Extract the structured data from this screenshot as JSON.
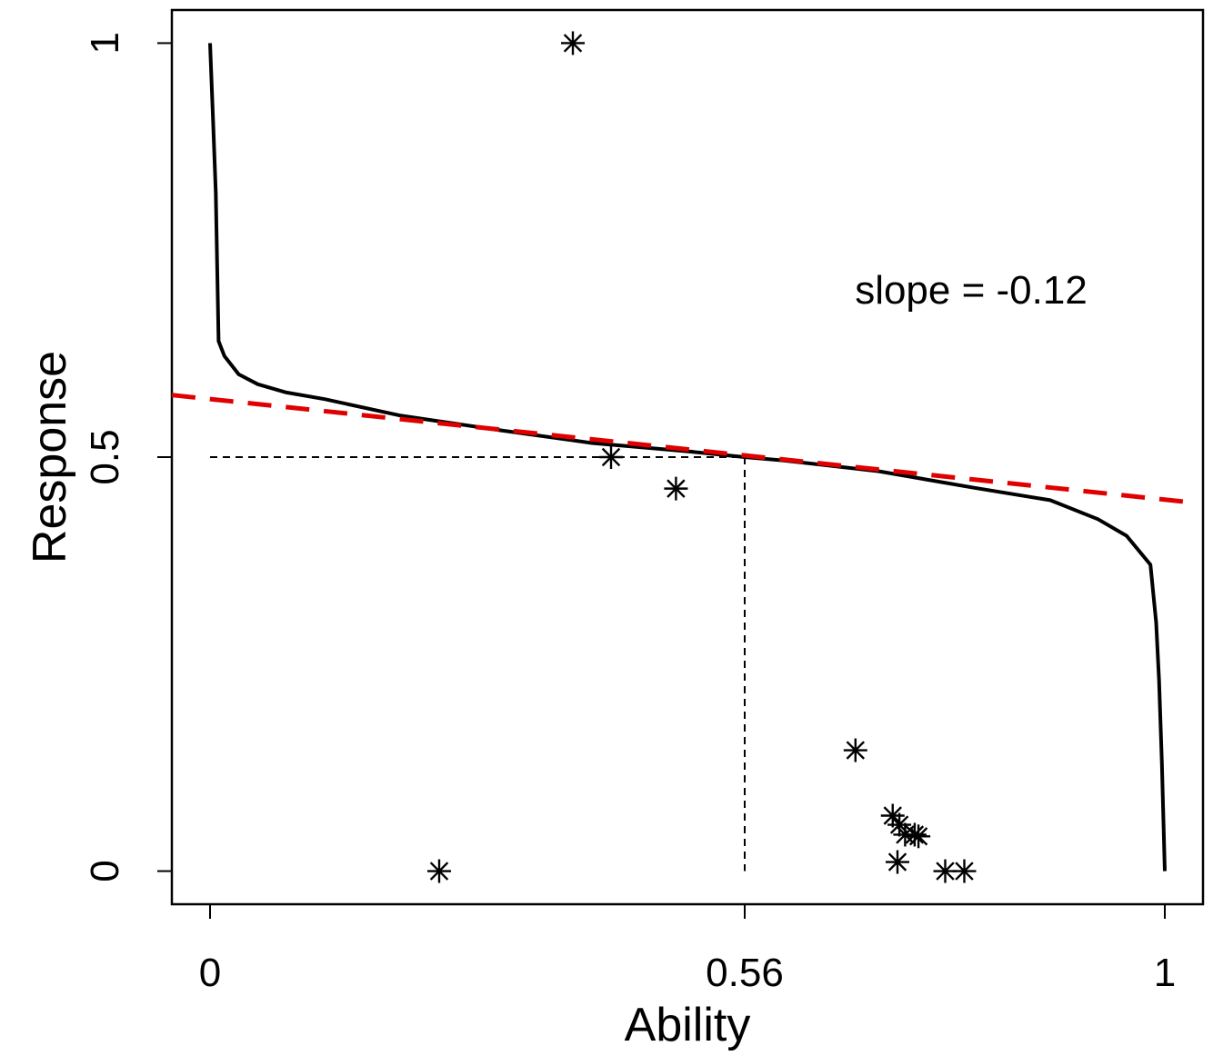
{
  "chart_data": {
    "type": "scatter",
    "title": "",
    "xlabel": "Ability",
    "ylabel": "Response",
    "xlim": [
      -0.04,
      1.04
    ],
    "ylim": [
      -0.04,
      1.04
    ],
    "x_ticks": [
      0,
      0.56,
      1
    ],
    "x_tick_labels": [
      "0",
      "0.56",
      "1"
    ],
    "y_ticks": [
      0,
      0.5,
      1
    ],
    "y_tick_labels": [
      "0",
      "0.5",
      "1"
    ],
    "annotation": "slope = -0.12",
    "colors": {
      "curve": "#000000",
      "fit_line": "#e00000",
      "points": "#000000",
      "guides": "#000000"
    },
    "series": [
      {
        "name": "observed responses",
        "kind": "points",
        "marker": "asterisk",
        "x": [
          0.24,
          0.38,
          0.42,
          0.488,
          0.676,
          0.715,
          0.722,
          0.728,
          0.738,
          0.742,
          0.72,
          0.77,
          0.79
        ],
        "y": [
          0.0,
          1.0,
          0.5,
          0.462,
          0.146,
          0.067,
          0.056,
          0.044,
          0.044,
          0.042,
          0.011,
          0.0,
          0.0
        ]
      },
      {
        "name": "fitted curve",
        "kind": "line",
        "style": "solid",
        "x": [
          0.0,
          0.003,
          0.006,
          0.009,
          0.015,
          0.03,
          0.05,
          0.08,
          0.12,
          0.2,
          0.3,
          0.4,
          0.5,
          0.56,
          0.6,
          0.7,
          0.8,
          0.88,
          0.93,
          0.96,
          0.985,
          0.991,
          0.994,
          0.997,
          1.0
        ],
        "y": [
          1.0,
          0.91,
          0.82,
          0.64,
          0.622,
          0.6,
          0.588,
          0.578,
          0.57,
          0.55,
          0.533,
          0.517,
          0.507,
          0.5,
          0.496,
          0.483,
          0.463,
          0.448,
          0.425,
          0.405,
          0.37,
          0.3,
          0.23,
          0.13,
          0.0
        ]
      },
      {
        "name": "linear fit",
        "kind": "line",
        "style": "dashed",
        "x": [
          -0.04,
          1.03
        ],
        "y": [
          0.575,
          0.445
        ]
      }
    ],
    "reference_lines": [
      {
        "name": "0.5 response",
        "style": "dashed",
        "x": [
          0,
          0.56
        ],
        "y": [
          0.5,
          0.5
        ]
      },
      {
        "name": "0.56 ability",
        "style": "dashed",
        "x": [
          0.56,
          0.56
        ],
        "y": [
          0.5,
          0
        ]
      }
    ]
  }
}
